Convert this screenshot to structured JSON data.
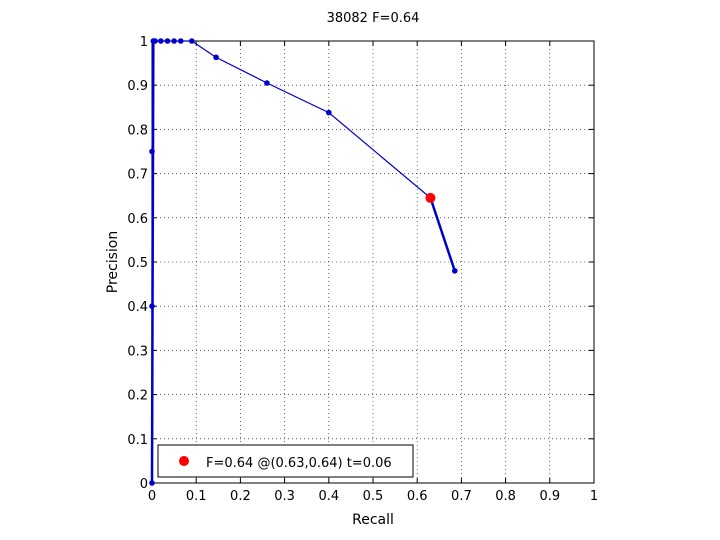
{
  "chart_data": {
    "type": "line",
    "title": "38082 F=0.64",
    "xlabel": "Recall",
    "ylabel": "Precision",
    "xlim": [
      0,
      1
    ],
    "ylim": [
      0,
      1
    ],
    "grid": true,
    "xticks": [
      "0",
      "0.1",
      "0.2",
      "0.3",
      "0.4",
      "0.5",
      "0.6",
      "0.7",
      "0.8",
      "0.9",
      "1"
    ],
    "yticks": [
      "0",
      "0.1",
      "0.2",
      "0.3",
      "0.4",
      "0.5",
      "0.6",
      "0.7",
      "0.8",
      "0.9",
      "1"
    ],
    "series": [
      {
        "color": "#0000cc",
        "x": [
          0.0,
          0.0,
          0.0,
          0.003,
          0.005,
          0.007,
          0.02,
          0.035,
          0.05,
          0.065,
          0.09,
          0.145,
          0.26,
          0.4,
          0.63,
          0.685
        ],
        "y": [
          0.0,
          0.4,
          0.75,
          1.0,
          1.0,
          1.0,
          1.0,
          1.0,
          1.0,
          1.0,
          1.0,
          0.963,
          0.905,
          0.838,
          0.645,
          0.48
        ]
      }
    ],
    "highlight": {
      "x": 0.63,
      "y": 0.645,
      "color": "#ff0000"
    },
    "legend": {
      "location": "bottom-left",
      "label": "F=0.64 @(0.63,0.64) t=0.06"
    }
  }
}
